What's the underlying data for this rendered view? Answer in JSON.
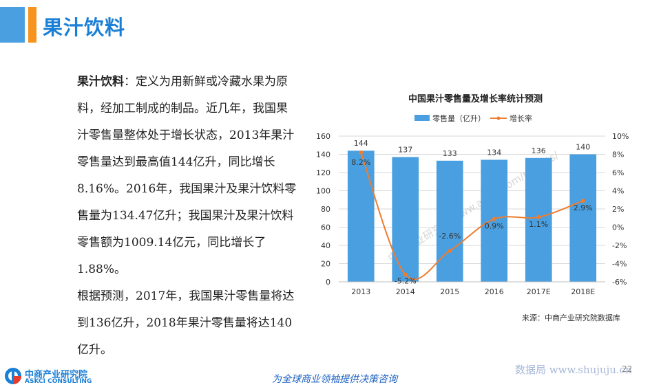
{
  "page": {
    "title": "果汁饮料",
    "para1_bold": "果汁饮料",
    "para1_rest": "：定义为用新鲜或冷藏水果为原料，经加工制成的制品。近几年，我国果汁零售量整体处于增长状态，2013年果汁零售量达到最高值144亿升，同比增长8.16%。2016年，我国果汁及果汁饮料零售量为134.47亿升；我国果汁及果汁饮料零售额为1009.14亿元，同比增长了1.88%。",
    "para2": "根据预测，2017年，我国果汁零售量将达到136亿升，2018年果汁零售量将达140亿升。",
    "source": "来源：中商产业研究院数据库",
    "logo_cn": "中商产业研究院",
    "logo_en": "ASKCI CONSULTING",
    "slogan": "为全球商业领袖提供决策咨询",
    "page_number": "22",
    "watermark_site": "数据局 www.shujuju.cn"
  },
  "chart_data": {
    "type": "bar",
    "title": "中国果汁零售量及增长率统计预测",
    "categories": [
      "2013",
      "2014",
      "2015",
      "2016",
      "2017E",
      "2018E"
    ],
    "series": [
      {
        "name": "零售量（亿升）",
        "type": "bar",
        "axis": "left",
        "values": [
          144,
          137,
          133,
          134,
          136,
          140
        ],
        "color": "#4a9fe0"
      },
      {
        "name": "增长率",
        "type": "line",
        "axis": "right",
        "values": [
          8.2,
          -5.2,
          -2.6,
          0.9,
          1.1,
          2.9
        ],
        "labels": [
          "8.2%",
          "-5.2%",
          "-2.6%",
          "0.9%",
          "1.1%",
          "2.9%"
        ],
        "color": "#ed7d31"
      }
    ],
    "ylim": [
      0,
      160
    ],
    "yticks": [
      "0",
      "20",
      "40",
      "60",
      "80",
      "100",
      "120",
      "140",
      "160"
    ],
    "y2lim": [
      -6,
      10
    ],
    "y2ticks": [
      "-6%",
      "-4%",
      "-2%",
      "0%",
      "2%",
      "4%",
      "6%",
      "8%",
      "10%"
    ],
    "grid": true,
    "legend": "top",
    "watermark": "中商产业研究院 www.askci.com/reports/"
  }
}
